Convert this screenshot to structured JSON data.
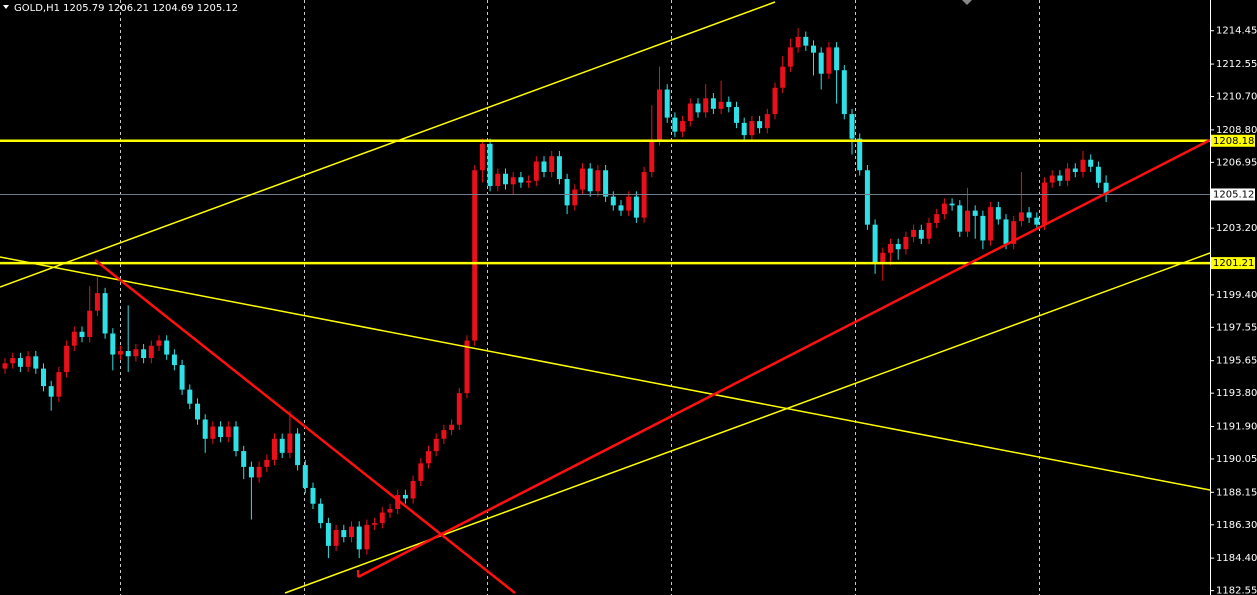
{
  "chart_data": {
    "type": "candlestick",
    "symbol": "GOLD,H1",
    "ylim": [
      1182.3,
      1216.2
    ],
    "yticks": [
      1214.45,
      1212.55,
      {
        "value": 1210.7,
        "label": "1210.70"
      },
      {
        "value": 1208.8,
        "label": "1208.80"
      },
      1206.95,
      {
        "value": 1203.2,
        "label": "1203.20"
      },
      {
        "value": 1199.4,
        "label": "1199.40"
      },
      1197.55,
      1195.65,
      {
        "value": 1193.8,
        "label": "1193.80"
      },
      {
        "value": 1191.9,
        "label": "1191.90"
      },
      1190.05,
      1188.15,
      {
        "value": 1186.3,
        "label": "1186.30"
      },
      {
        "value": 1184.4,
        "label": "1184.40"
      },
      1182.55
    ],
    "up_color": "#e8101a",
    "down_color": "#2fe0e6",
    "price_line_color": "#6b7b8c",
    "hlines": [
      {
        "value": 1208.18,
        "color": "#ffff00"
      },
      {
        "value": 1201.21,
        "color": "#ffff00"
      }
    ],
    "open": [
      1195.2,
      1195.5,
      1195.8,
      1195.3,
      1195.9,
      1195.2,
      1194.2,
      1193.6,
      1195.0,
      1196.5,
      1197.3,
      1197.0,
      1198.5,
      1199.5,
      1197.2,
      1196.0,
      1196.2,
      1195.9,
      1196.3,
      1195.8,
      1196.5,
      1196.8,
      1196.0,
      1195.4,
      1194.0,
      1193.2,
      1192.3,
      1191.2,
      1191.9,
      1191.3,
      1191.9,
      1190.5,
      1189.6,
      1189.0,
      1189.6,
      1190.0,
      1191.2,
      1190.4,
      1191.5,
      1189.7,
      1188.4,
      1187.5,
      1186.4,
      1185.1,
      1186.0,
      1185.6,
      1186.2,
      1184.9,
      1186.3,
      1186.4,
      1187.0,
      1187.2,
      1188.0,
      1187.8,
      1188.8,
      1189.8,
      1190.5,
      1191.2,
      1191.7,
      1192.0,
      1193.8,
      1196.8,
      1206.5,
      1208.0,
      1205.6,
      1206.3,
      1205.7,
      1206.1,
      1205.8,
      1205.9,
      1207.0,
      1206.4,
      1207.3,
      1206.0,
      1204.5,
      1205.4,
      1206.6,
      1205.3,
      1206.5,
      1205.0,
      1204.5,
      1204.2,
      1205.0,
      1203.8,
      1206.4,
      1208.2,
      1211.1,
      1209.5,
      1208.7,
      1209.3,
      1210.3,
      1209.8,
      1210.6,
      1210.0,
      1210.4,
      1210.1,
      1209.2,
      1208.5,
      1209.3,
      1208.9,
      1209.7,
      1211.2,
      1212.4,
      1213.5,
      1214.1,
      1213.6,
      1213.2,
      1212.0,
      1213.5,
      1212.2,
      1209.7,
      1208.3,
      1206.5,
      1203.4,
      1201.2,
      1201.8,
      1202.3,
      1202.0,
      1202.7,
      1203.1,
      1202.6,
      1203.5,
      1204.0,
      1204.6,
      1204.5,
      1203.0,
      1204.2,
      1203.9,
      1202.5,
      1204.4,
      1203.7,
      1202.3,
      1203.6,
      1204.1,
      1203.8,
      1203.4,
      1205.8,
      1206.2,
      1205.9,
      1206.6,
      1206.4,
      1207.1,
      1206.7,
      1205.79
    ],
    "high": [
      1195.8,
      1196.1,
      1196.1,
      1196.2,
      1196.2,
      1195.5,
      1194.5,
      1195.3,
      1196.8,
      1197.6,
      1197.6,
      1199.9,
      1200.4,
      1199.8,
      1197.5,
      1196.5,
      1198.8,
      1196.6,
      1196.6,
      1196.8,
      1197.1,
      1197.1,
      1196.3,
      1195.7,
      1194.3,
      1193.5,
      1192.6,
      1192.2,
      1192.2,
      1192.2,
      1192.2,
      1190.8,
      1189.9,
      1189.9,
      1190.3,
      1191.5,
      1191.5,
      1192.8,
      1191.8,
      1190.0,
      1188.7,
      1187.8,
      1186.7,
      1186.3,
      1186.3,
      1186.5,
      1186.5,
      1186.6,
      1186.7,
      1187.3,
      1187.5,
      1188.3,
      1188.3,
      1189.1,
      1190.1,
      1190.8,
      1191.5,
      1192.0,
      1192.3,
      1194.1,
      1197.1,
      1206.8,
      1208.3,
      1208.3,
      1206.6,
      1206.6,
      1206.4,
      1206.4,
      1206.2,
      1207.3,
      1207.3,
      1207.6,
      1207.6,
      1206.3,
      1205.7,
      1206.9,
      1206.9,
      1206.8,
      1206.8,
      1205.3,
      1204.8,
      1205.3,
      1205.3,
      1206.7,
      1210.2,
      1212.4,
      1211.4,
      1209.8,
      1209.6,
      1210.6,
      1210.6,
      1211.4,
      1210.9,
      1211.6,
      1210.7,
      1210.4,
      1209.5,
      1209.6,
      1209.6,
      1210.0,
      1211.5,
      1213.0,
      1214.0,
      1214.6,
      1214.4,
      1213.9,
      1213.5,
      1213.8,
      1213.8,
      1212.5,
      1210.0,
      1208.6,
      1206.8,
      1203.7,
      1202.1,
      1202.6,
      1202.6,
      1203.0,
      1203.4,
      1203.4,
      1203.8,
      1204.3,
      1204.9,
      1204.9,
      1204.8,
      1205.5,
      1204.5,
      1204.2,
      1204.7,
      1204.7,
      1204.0,
      1203.9,
      1206.4,
      1204.4,
      1204.1,
      1206.1,
      1206.5,
      1206.5,
      1206.9,
      1206.9,
      1207.6,
      1207.4,
      1207.0,
      1206.21
    ],
    "low": [
      1194.9,
      1195.2,
      1195.0,
      1195.0,
      1194.9,
      1193.9,
      1192.8,
      1193.3,
      1194.7,
      1196.2,
      1196.7,
      1196.7,
      1198.2,
      1196.9,
      1195.1,
      1195.7,
      1195.0,
      1195.6,
      1195.5,
      1195.5,
      1196.2,
      1195.7,
      1195.1,
      1193.7,
      1192.9,
      1192.0,
      1190.4,
      1190.9,
      1191.0,
      1191.0,
      1190.2,
      1188.9,
      1186.6,
      1188.7,
      1189.3,
      1189.7,
      1190.1,
      1190.1,
      1189.4,
      1188.1,
      1187.2,
      1186.1,
      1184.4,
      1184.8,
      1185.3,
      1185.3,
      1184.4,
      1184.6,
      1186.0,
      1186.1,
      1186.7,
      1186.9,
      1187.5,
      1187.5,
      1188.5,
      1189.5,
      1190.2,
      1190.9,
      1191.4,
      1191.7,
      1193.5,
      1196.5,
      1205.8,
      1205.3,
      1205.3,
      1205.4,
      1205.1,
      1205.5,
      1205.5,
      1205.6,
      1206.1,
      1206.1,
      1205.7,
      1204.0,
      1204.2,
      1205.1,
      1205.0,
      1205.0,
      1204.7,
      1204.2,
      1203.9,
      1203.9,
      1203.5,
      1203.5,
      1206.1,
      1207.9,
      1209.2,
      1208.4,
      1208.4,
      1209.0,
      1209.5,
      1209.5,
      1209.7,
      1209.7,
      1209.8,
      1208.9,
      1208.2,
      1208.2,
      1208.6,
      1208.6,
      1209.4,
      1210.9,
      1212.1,
      1213.2,
      1213.3,
      1211.9,
      1211.1,
      1211.7,
      1210.3,
      1209.4,
      1207.4,
      1206.2,
      1203.1,
      1200.6,
      1200.2,
      1201.1,
      1201.4,
      1201.7,
      1202.4,
      1202.3,
      1202.3,
      1203.2,
      1203.7,
      1204.2,
      1202.7,
      1202.7,
      1202.6,
      1202.0,
      1202.2,
      1203.4,
      1202.0,
      1202.0,
      1203.3,
      1203.5,
      1203.1,
      1203.1,
      1205.5,
      1205.6,
      1205.6,
      1206.1,
      1206.1,
      1206.4,
      1205.49,
      1204.69
    ],
    "close": [
      1195.5,
      1195.8,
      1195.3,
      1195.9,
      1195.2,
      1194.2,
      1193.6,
      1195.0,
      1196.5,
      1197.3,
      1197.0,
      1198.5,
      1199.5,
      1197.2,
      1196.0,
      1196.2,
      1195.9,
      1196.3,
      1195.8,
      1196.5,
      1196.8,
      1196.0,
      1195.4,
      1194.0,
      1193.2,
      1192.3,
      1191.2,
      1191.9,
      1191.3,
      1191.9,
      1190.5,
      1189.6,
      1189.0,
      1189.6,
      1190.0,
      1191.2,
      1190.4,
      1191.5,
      1189.7,
      1188.4,
      1187.5,
      1186.4,
      1185.1,
      1186.0,
      1185.6,
      1186.2,
      1184.9,
      1186.3,
      1186.4,
      1187.0,
      1187.2,
      1188.0,
      1187.8,
      1188.8,
      1189.8,
      1190.5,
      1191.2,
      1191.7,
      1192.0,
      1193.8,
      1196.8,
      1206.5,
      1208.0,
      1205.6,
      1206.3,
      1205.7,
      1206.1,
      1205.8,
      1205.9,
      1207.0,
      1206.4,
      1207.3,
      1206.0,
      1204.5,
      1205.4,
      1206.6,
      1205.3,
      1206.5,
      1205.0,
      1204.5,
      1204.2,
      1205.0,
      1203.8,
      1206.4,
      1208.2,
      1211.1,
      1209.5,
      1208.7,
      1209.3,
      1210.3,
      1209.8,
      1210.6,
      1210.0,
      1210.4,
      1210.1,
      1209.2,
      1208.5,
      1209.3,
      1208.9,
      1209.7,
      1211.2,
      1212.4,
      1213.5,
      1214.1,
      1213.6,
      1213.2,
      1212.0,
      1213.5,
      1212.2,
      1209.7,
      1208.3,
      1206.5,
      1203.4,
      1201.2,
      1201.8,
      1202.3,
      1202.0,
      1202.7,
      1203.1,
      1202.6,
      1203.5,
      1204.0,
      1204.6,
      1204.5,
      1203.0,
      1204.2,
      1203.9,
      1202.5,
      1204.4,
      1203.7,
      1202.3,
      1203.6,
      1204.1,
      1203.8,
      1203.4,
      1205.8,
      1206.2,
      1205.9,
      1206.6,
      1206.4,
      1207.1,
      1206.7,
      1205.79,
      1205.12
    ]
  }
}
